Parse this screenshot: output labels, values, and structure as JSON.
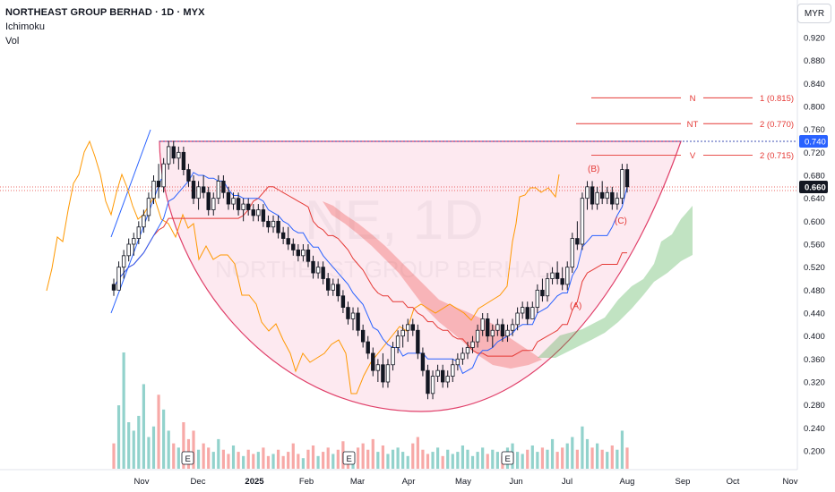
{
  "header": {
    "title": "NORTHEAST GROUP BERHAD · 1D · MYX",
    "indicator_1": "Ichimoku",
    "indicator_2": "Vol",
    "currency": "MYR"
  },
  "watermark": {
    "symbol": "NE, 1D",
    "name": "NORTHEAST GROUP BERHAD"
  },
  "chart_data": {
    "type": "candlestick",
    "ylim": [
      0.16,
      0.96
    ],
    "y_ticks": [
      "0.920",
      "0.880",
      "0.840",
      "0.800",
      "0.760",
      "0.720",
      "0.680",
      "0.640",
      "0.600",
      "0.560",
      "0.520",
      "0.480",
      "0.440",
      "0.400",
      "0.360",
      "0.320",
      "0.280",
      "0.240",
      "0.200"
    ],
    "x_ticks": [
      "Nov",
      "Dec",
      "2025",
      "Feb",
      "Mar",
      "Apr",
      "May",
      "Jun",
      "Jul",
      "Aug",
      "Sep",
      "Oct",
      "Nov"
    ],
    "price_labels": {
      "current": "0.660",
      "resistance": "0.740"
    },
    "current_price": 0.66,
    "resistance_level": 0.74,
    "fib_targets": [
      {
        "label": "N",
        "value_label": "1 (0.815)",
        "price": 0.815
      },
      {
        "label": "NT",
        "value_label": "2 (0.770)",
        "price": 0.77
      },
      {
        "label": "V",
        "value_label": "2 (0.715)",
        "price": 0.715
      }
    ],
    "wave_labels": [
      "(A)",
      "(B)",
      "(C)"
    ],
    "earnings_markers": [
      "E",
      "E",
      "E"
    ],
    "candles": [
      [
        0.49,
        0.5,
        0.47,
        0.48
      ],
      [
        0.48,
        0.53,
        0.48,
        0.52
      ],
      [
        0.52,
        0.55,
        0.5,
        0.54
      ],
      [
        0.54,
        0.57,
        0.53,
        0.56
      ],
      [
        0.56,
        0.58,
        0.54,
        0.57
      ],
      [
        0.57,
        0.6,
        0.56,
        0.59
      ],
      [
        0.59,
        0.62,
        0.58,
        0.61
      ],
      [
        0.61,
        0.65,
        0.6,
        0.64
      ],
      [
        0.64,
        0.68,
        0.63,
        0.67
      ],
      [
        0.67,
        0.7,
        0.64,
        0.66
      ],
      [
        0.66,
        0.71,
        0.65,
        0.7
      ],
      [
        0.7,
        0.74,
        0.69,
        0.73
      ],
      [
        0.73,
        0.74,
        0.7,
        0.71
      ],
      [
        0.71,
        0.73,
        0.69,
        0.72
      ],
      [
        0.72,
        0.73,
        0.68,
        0.69
      ],
      [
        0.69,
        0.7,
        0.66,
        0.67
      ],
      [
        0.67,
        0.68,
        0.63,
        0.64
      ],
      [
        0.64,
        0.67,
        0.62,
        0.66
      ],
      [
        0.66,
        0.68,
        0.64,
        0.65
      ],
      [
        0.65,
        0.66,
        0.61,
        0.62
      ],
      [
        0.62,
        0.65,
        0.61,
        0.64
      ],
      [
        0.64,
        0.68,
        0.63,
        0.67
      ],
      [
        0.67,
        0.68,
        0.64,
        0.65
      ],
      [
        0.65,
        0.66,
        0.62,
        0.63
      ],
      [
        0.63,
        0.65,
        0.62,
        0.64
      ],
      [
        0.64,
        0.65,
        0.61,
        0.62
      ],
      [
        0.62,
        0.64,
        0.6,
        0.63
      ],
      [
        0.63,
        0.64,
        0.61,
        0.62
      ],
      [
        0.62,
        0.63,
        0.6,
        0.61
      ],
      [
        0.61,
        0.63,
        0.6,
        0.62
      ],
      [
        0.62,
        0.63,
        0.59,
        0.6
      ],
      [
        0.6,
        0.61,
        0.58,
        0.59
      ],
      [
        0.59,
        0.61,
        0.58,
        0.6
      ],
      [
        0.6,
        0.61,
        0.57,
        0.58
      ],
      [
        0.58,
        0.59,
        0.56,
        0.57
      ],
      [
        0.57,
        0.59,
        0.55,
        0.56
      ],
      [
        0.56,
        0.57,
        0.54,
        0.55
      ],
      [
        0.55,
        0.56,
        0.53,
        0.54
      ],
      [
        0.54,
        0.56,
        0.53,
        0.55
      ],
      [
        0.55,
        0.56,
        0.52,
        0.53
      ],
      [
        0.53,
        0.54,
        0.5,
        0.51
      ],
      [
        0.51,
        0.53,
        0.5,
        0.52
      ],
      [
        0.52,
        0.53,
        0.49,
        0.5
      ],
      [
        0.5,
        0.51,
        0.47,
        0.48
      ],
      [
        0.48,
        0.5,
        0.47,
        0.49
      ],
      [
        0.49,
        0.5,
        0.46,
        0.47
      ],
      [
        0.47,
        0.48,
        0.44,
        0.45
      ],
      [
        0.45,
        0.46,
        0.42,
        0.43
      ],
      [
        0.43,
        0.45,
        0.41,
        0.44
      ],
      [
        0.44,
        0.45,
        0.4,
        0.41
      ],
      [
        0.41,
        0.42,
        0.38,
        0.39
      ],
      [
        0.39,
        0.4,
        0.36,
        0.37
      ],
      [
        0.37,
        0.38,
        0.33,
        0.34
      ],
      [
        0.34,
        0.36,
        0.32,
        0.35
      ],
      [
        0.35,
        0.37,
        0.31,
        0.32
      ],
      [
        0.32,
        0.36,
        0.31,
        0.35
      ],
      [
        0.35,
        0.39,
        0.34,
        0.38
      ],
      [
        0.38,
        0.41,
        0.37,
        0.4
      ],
      [
        0.4,
        0.42,
        0.38,
        0.41
      ],
      [
        0.41,
        0.43,
        0.39,
        0.42
      ],
      [
        0.42,
        0.43,
        0.4,
        0.41
      ],
      [
        0.41,
        0.42,
        0.36,
        0.37
      ],
      [
        0.37,
        0.38,
        0.33,
        0.34
      ],
      [
        0.34,
        0.35,
        0.29,
        0.3
      ],
      [
        0.3,
        0.34,
        0.29,
        0.33
      ],
      [
        0.33,
        0.35,
        0.32,
        0.34
      ],
      [
        0.34,
        0.35,
        0.31,
        0.32
      ],
      [
        0.32,
        0.34,
        0.31,
        0.33
      ],
      [
        0.33,
        0.36,
        0.32,
        0.35
      ],
      [
        0.35,
        0.37,
        0.34,
        0.36
      ],
      [
        0.36,
        0.38,
        0.35,
        0.37
      ],
      [
        0.37,
        0.39,
        0.36,
        0.38
      ],
      [
        0.38,
        0.4,
        0.37,
        0.39
      ],
      [
        0.39,
        0.42,
        0.38,
        0.41
      ],
      [
        0.41,
        0.44,
        0.4,
        0.43
      ],
      [
        0.43,
        0.44,
        0.39,
        0.4
      ],
      [
        0.4,
        0.42,
        0.38,
        0.41
      ],
      [
        0.41,
        0.43,
        0.4,
        0.42
      ],
      [
        0.42,
        0.43,
        0.39,
        0.4
      ],
      [
        0.4,
        0.42,
        0.39,
        0.41
      ],
      [
        0.41,
        0.43,
        0.4,
        0.42
      ],
      [
        0.42,
        0.45,
        0.41,
        0.44
      ],
      [
        0.44,
        0.46,
        0.43,
        0.45
      ],
      [
        0.45,
        0.46,
        0.42,
        0.43
      ],
      [
        0.43,
        0.46,
        0.43,
        0.45
      ],
      [
        0.45,
        0.49,
        0.44,
        0.48
      ],
      [
        0.48,
        0.5,
        0.46,
        0.47
      ],
      [
        0.47,
        0.51,
        0.46,
        0.5
      ],
      [
        0.5,
        0.52,
        0.49,
        0.51
      ],
      [
        0.51,
        0.53,
        0.49,
        0.5
      ],
      [
        0.5,
        0.52,
        0.48,
        0.49
      ],
      [
        0.49,
        0.53,
        0.48,
        0.52
      ],
      [
        0.52,
        0.58,
        0.51,
        0.57
      ],
      [
        0.57,
        0.6,
        0.55,
        0.56
      ],
      [
        0.56,
        0.65,
        0.55,
        0.64
      ],
      [
        0.64,
        0.67,
        0.62,
        0.66
      ],
      [
        0.66,
        0.67,
        0.62,
        0.63
      ],
      [
        0.63,
        0.66,
        0.62,
        0.65
      ],
      [
        0.65,
        0.67,
        0.63,
        0.64
      ],
      [
        0.64,
        0.66,
        0.63,
        0.65
      ],
      [
        0.65,
        0.66,
        0.62,
        0.63
      ],
      [
        0.63,
        0.65,
        0.62,
        0.64
      ],
      [
        0.64,
        0.7,
        0.63,
        0.69
      ],
      [
        0.69,
        0.7,
        0.65,
        0.66
      ]
    ],
    "volume": [
      12,
      30,
      55,
      22,
      18,
      25,
      40,
      15,
      20,
      35,
      28,
      18,
      12,
      10,
      22,
      14,
      18,
      9,
      12,
      10,
      8,
      14,
      9,
      7,
      11,
      8,
      6,
      9,
      7,
      8,
      10,
      6,
      7,
      9,
      6,
      8,
      12,
      7,
      5,
      9,
      11,
      6,
      8,
      10,
      7,
      9,
      13,
      8,
      6,
      10,
      12,
      9,
      14,
      8,
      11,
      7,
      9,
      10,
      8,
      6,
      12,
      15,
      9,
      7,
      8,
      10,
      6,
      9,
      7,
      8,
      11,
      9,
      6,
      8,
      10,
      7,
      9,
      8,
      6,
      10,
      12,
      8,
      7,
      9,
      11,
      8,
      10,
      9,
      14,
      8,
      10,
      12,
      15,
      9,
      20,
      14,
      10,
      12,
      9,
      8,
      11,
      9,
      18,
      10
    ]
  }
}
